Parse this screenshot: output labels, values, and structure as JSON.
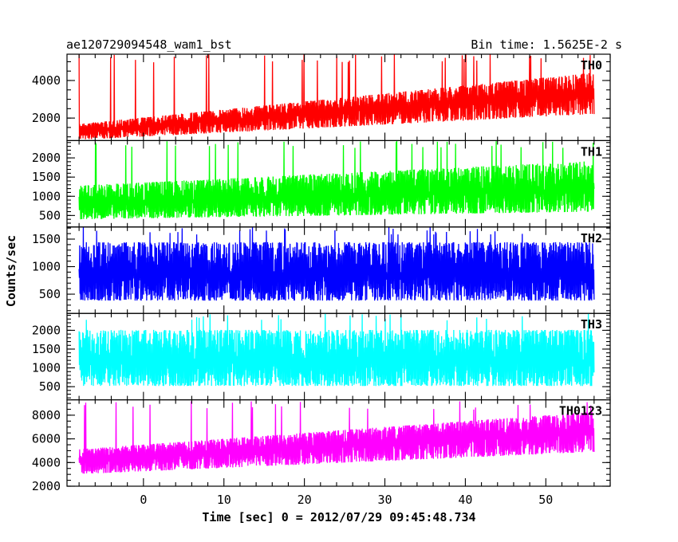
{
  "chart_data": {
    "type": "line",
    "title_left": "ae120729094548_wam1_bst",
    "title_right": "Bin time: 1.5625E-2 s",
    "xlabel": "Time [sec] 0 = 2012/07/29 09:45:48.734",
    "ylabel": "Counts/sec",
    "xlim": [
      -9.5,
      58
    ],
    "x_ticks": [
      0,
      10,
      20,
      30,
      40,
      50
    ],
    "x_minor_step": 2,
    "data_x_range": [
      -8,
      56
    ],
    "grid": false,
    "panels": [
      {
        "name": "TH0",
        "color": "#ff0000",
        "ylim": [
          800,
          5400
        ],
        "y_ticks": [
          2000,
          4000
        ],
        "y_minor_step": 500,
        "trend": {
          "start": 1300,
          "end": 3400
        },
        "band": {
          "low": 0.65,
          "high": 1.3
        },
        "spikes_to": 5400
      },
      {
        "name": "TH1",
        "color": "#00ff00",
        "ylim": [
          200,
          2450
        ],
        "y_ticks": [
          500,
          1000,
          1500,
          2000
        ],
        "y_minor_step": 100,
        "trend": {
          "start": 800,
          "end": 1200
        },
        "band": {
          "low": 0.5,
          "high": 1.6
        },
        "spikes_to": 2450
      },
      {
        "name": "TH2",
        "color": "#0000ff",
        "ylim": [
          150,
          1720
        ],
        "y_ticks": [
          500,
          1000,
          1500
        ],
        "y_minor_step": 100,
        "trend": {
          "start": 850,
          "end": 850
        },
        "band": {
          "low": 0.45,
          "high": 1.7
        },
        "spikes_to": 1720
      },
      {
        "name": "TH3",
        "color": "#00ffff",
        "ylim": [
          150,
          2450
        ],
        "y_ticks": [
          500,
          1000,
          1500,
          2000
        ],
        "y_minor_step": 100,
        "trend": {
          "start": 1150,
          "end": 1150
        },
        "band": {
          "low": 0.45,
          "high": 1.75
        },
        "spikes_to": 2450
      },
      {
        "name": "TH0123",
        "color": "#ff00ff",
        "ylim": [
          2000,
          9300
        ],
        "y_ticks": [
          2000,
          4000,
          6000,
          8000
        ],
        "y_minor_step": 500,
        "trend": {
          "start": 4200,
          "end": 6800
        },
        "band": {
          "low": 0.72,
          "high": 1.22
        },
        "spikes_to": 9200
      }
    ]
  }
}
